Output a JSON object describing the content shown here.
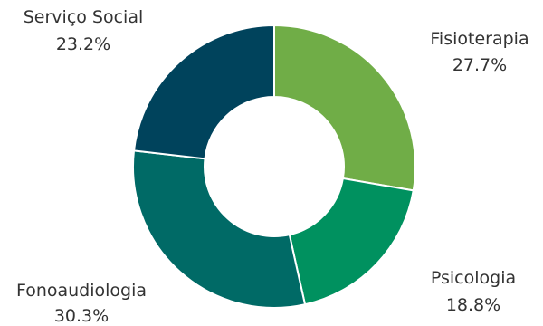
{
  "chart_data": {
    "type": "pie",
    "variant": "donut",
    "title": "",
    "legend": "none",
    "slices": [
      {
        "label": "Fisioterapia",
        "value": 27.7,
        "value_label": "27.7%",
        "color": "#70AD47"
      },
      {
        "label": "Psicologia",
        "value": 18.8,
        "value_label": "18.8%",
        "color": "#00915F"
      },
      {
        "label": "Fonoaudiologia",
        "value": 30.3,
        "value_label": "30.3%",
        "color": "#006A66"
      },
      {
        "label": "Serviço Social",
        "value": 23.2,
        "value_label": "23.2%",
        "color": "#00435C"
      }
    ]
  }
}
